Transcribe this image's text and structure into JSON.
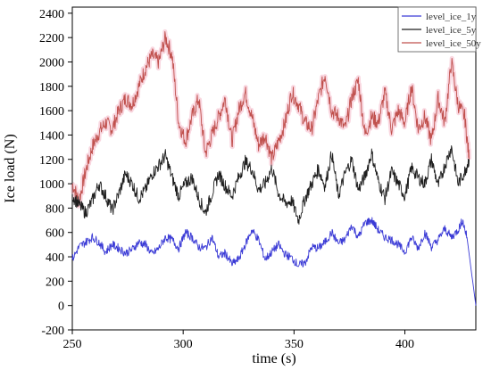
{
  "chart_data": {
    "type": "line",
    "title": "",
    "xlabel": "time (s)",
    "ylabel": "Ice load (N)",
    "xlim": [
      250,
      432
    ],
    "ylim": [
      -200,
      2450
    ],
    "xticks": [
      250,
      300,
      350,
      400
    ],
    "yticks": [
      -200,
      0,
      200,
      400,
      600,
      800,
      1000,
      1200,
      1400,
      1600,
      1800,
      2000,
      2200,
      2400
    ],
    "grid": false,
    "legend_position": "top-right",
    "series": [
      {
        "name": "level_ice_1y",
        "color": "#3b3bd6",
        "x": [
          250,
          253,
          256,
          259,
          262,
          265,
          268,
          271,
          274,
          277,
          280,
          283,
          286,
          289,
          292,
          295,
          298,
          301,
          304,
          307,
          310,
          313,
          316,
          319,
          322,
          325,
          328,
          331,
          334,
          337,
          340,
          343,
          346,
          349,
          352,
          355,
          358,
          361,
          364,
          367,
          370,
          373,
          376,
          379,
          382,
          385,
          388,
          391,
          394,
          397,
          400,
          403,
          406,
          409,
          412,
          415,
          418,
          421,
          424,
          426,
          428,
          432
        ],
        "y": [
          380,
          480,
          520,
          560,
          520,
          440,
          500,
          470,
          430,
          460,
          520,
          500,
          420,
          470,
          560,
          540,
          470,
          600,
          560,
          480,
          470,
          560,
          400,
          430,
          340,
          380,
          500,
          620,
          540,
          380,
          440,
          500,
          420,
          390,
          330,
          350,
          480,
          470,
          520,
          600,
          510,
          540,
          660,
          560,
          680,
          700,
          620,
          560,
          540,
          500,
          440,
          560,
          470,
          600,
          480,
          540,
          630,
          560,
          620,
          700,
          560,
          0
        ]
      },
      {
        "name": "level_ice_5y",
        "color": "#1e1e1e",
        "x": [
          250,
          253,
          256,
          259,
          262,
          265,
          268,
          271,
          274,
          277,
          280,
          283,
          286,
          289,
          292,
          295,
          298,
          301,
          304,
          307,
          310,
          313,
          316,
          319,
          322,
          325,
          328,
          331,
          334,
          337,
          340,
          343,
          346,
          349,
          352,
          355,
          358,
          361,
          364,
          367,
          370,
          373,
          376,
          379,
          382,
          385,
          388,
          391,
          394,
          397,
          400,
          403,
          406,
          409,
          412,
          415,
          418,
          421,
          424,
          427,
          429
        ],
        "y": [
          900,
          830,
          760,
          860,
          1000,
          900,
          780,
          920,
          1080,
          1000,
          880,
          950,
          1080,
          1150,
          1230,
          1050,
          900,
          1000,
          1050,
          880,
          760,
          920,
          1080,
          980,
          900,
          1050,
          1180,
          1120,
          950,
          1000,
          1130,
          920,
          840,
          860,
          700,
          880,
          1000,
          1120,
          980,
          1250,
          900,
          1080,
          1200,
          950,
          1060,
          1250,
          1020,
          880,
          1100,
          1000,
          900,
          1130,
          1050,
          1000,
          1200,
          980,
          1150,
          1300,
          1000,
          1100,
          1200
        ]
      },
      {
        "name": "level_ice_50y",
        "color": "#c0504d",
        "x": [
          250,
          253,
          256,
          259,
          262,
          265,
          268,
          271,
          274,
          277,
          280,
          283,
          286,
          289,
          292,
          295,
          298,
          301,
          304,
          307,
          310,
          313,
          316,
          319,
          322,
          325,
          328,
          331,
          334,
          337,
          340,
          343,
          346,
          349,
          352,
          355,
          358,
          361,
          364,
          367,
          370,
          373,
          376,
          379,
          382,
          385,
          388,
          391,
          394,
          397,
          400,
          403,
          406,
          409,
          412,
          415,
          418,
          421,
          424,
          427,
          429
        ],
        "y": [
          1000,
          860,
          1100,
          1300,
          1420,
          1500,
          1450,
          1600,
          1700,
          1650,
          1800,
          1950,
          2050,
          2000,
          2200,
          2050,
          1500,
          1350,
          1550,
          1700,
          1250,
          1400,
          1550,
          1700,
          1350,
          1600,
          1750,
          1550,
          1320,
          1400,
          1200,
          1350,
          1500,
          1750,
          1650,
          1500,
          1450,
          1700,
          1900,
          1600,
          1550,
          1450,
          1700,
          1850,
          1400,
          1550,
          1500,
          1750,
          1450,
          1600,
          1500,
          1800,
          1450,
          1550,
          1350,
          1700,
          1500,
          2000,
          1650,
          1550,
          1200
        ]
      }
    ]
  }
}
